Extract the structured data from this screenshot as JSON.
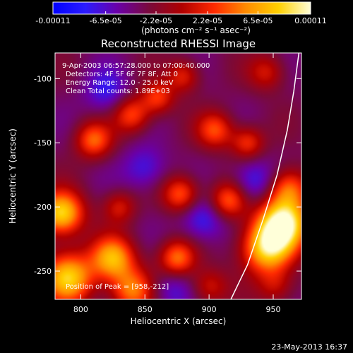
{
  "colorbar": {
    "stops": [
      "#0000ff",
      "#2b1cff",
      "#6a00a8",
      "#7a0a3a",
      "#b00000",
      "#ff2a00",
      "#ff8c00",
      "#ffd000",
      "#ffffd9"
    ],
    "tick_labels": [
      "-0.00011",
      "-6.5e-05",
      "-2.2e-05",
      "2.2e-05",
      "6.5e-05",
      "0.00011"
    ],
    "ticks": [
      -0.00011,
      -6.5e-05,
      -2.2e-05,
      2.2e-05,
      6.5e-05,
      0.00011
    ],
    "range": [
      -0.00011,
      0.00011
    ],
    "unit_label": "(photons cm⁻² s⁻¹ asec⁻²)"
  },
  "chart_data": {
    "type": "heatmap",
    "title": "Reconstructed RHESSI Image",
    "xlabel": "Heliocentric X (arcsec)",
    "ylabel": "Heliocentric Y (arcsec)",
    "xlim": [
      780,
      972
    ],
    "ylim": [
      -272,
      -80
    ],
    "x_ticks": [
      800,
      850,
      900,
      950
    ],
    "y_ticks": [
      -100,
      -150,
      -200,
      -250
    ],
    "annotations": [
      "9-Apr-2003 06:57:28.000 to 07:00:40.000",
      "Detectors: 4F 5F 6F 7F 8F, Att 0",
      "Energy Range: 12.0 - 25.0 keV",
      "Clean     Total counts: 1.89E+03"
    ],
    "peak_label": "Position of Peak = [958,-212]",
    "peak": [
      958,
      -212
    ],
    "limb_curve": [
      [
        917,
        -272
      ],
      [
        930,
        -245
      ],
      [
        942,
        -210
      ],
      [
        953,
        -175
      ],
      [
        961,
        -140
      ],
      [
        966,
        -110
      ],
      [
        970,
        -80
      ]
    ],
    "sources": [
      {
        "x": 958,
        "y": -212,
        "amp": 1.0,
        "s": 14
      },
      {
        "x": 945,
        "y": -232,
        "amp": 0.85,
        "s": 14
      },
      {
        "x": 962,
        "y": -185,
        "amp": 0.55,
        "s": 11
      },
      {
        "x": 785,
        "y": -205,
        "amp": 0.9,
        "s": 12
      },
      {
        "x": 790,
        "y": -255,
        "amp": 0.85,
        "s": 14
      },
      {
        "x": 825,
        "y": -240,
        "amp": 0.75,
        "s": 12
      },
      {
        "x": 840,
        "y": -265,
        "amp": 0.6,
        "s": 12
      },
      {
        "x": 875,
        "y": -240,
        "amp": 0.6,
        "s": 10
      },
      {
        "x": 878,
        "y": -190,
        "amp": 0.55,
        "s": 10
      },
      {
        "x": 915,
        "y": -195,
        "amp": 0.55,
        "s": 10
      },
      {
        "x": 905,
        "y": -140,
        "amp": 0.5,
        "s": 10
      },
      {
        "x": 930,
        "y": -150,
        "amp": 0.45,
        "s": 9
      },
      {
        "x": 810,
        "y": -148,
        "amp": 0.55,
        "s": 10
      },
      {
        "x": 840,
        "y": -128,
        "amp": 0.5,
        "s": 10
      },
      {
        "x": 860,
        "y": -115,
        "amp": 0.45,
        "s": 9
      },
      {
        "x": 880,
        "y": -98,
        "amp": 0.4,
        "s": 9
      },
      {
        "x": 945,
        "y": -95,
        "amp": 0.35,
        "s": 10
      },
      {
        "x": 830,
        "y": -200,
        "amp": 0.35,
        "s": 9
      },
      {
        "x": 900,
        "y": -262,
        "amp": 0.35,
        "s": 10
      },
      {
        "x": 952,
        "y": -262,
        "amp": 0.3,
        "s": 10
      },
      {
        "x": 850,
        "y": -170,
        "amp": -0.3,
        "s": 12
      },
      {
        "x": 895,
        "y": -210,
        "amp": -0.35,
        "s": 12
      },
      {
        "x": 820,
        "y": -110,
        "amp": -0.3,
        "s": 12
      },
      {
        "x": 935,
        "y": -180,
        "amp": -0.35,
        "s": 12
      },
      {
        "x": 870,
        "y": -265,
        "amp": -0.25,
        "s": 12
      }
    ]
  },
  "footer": {
    "date_text": "23-May-2013 16:37"
  }
}
